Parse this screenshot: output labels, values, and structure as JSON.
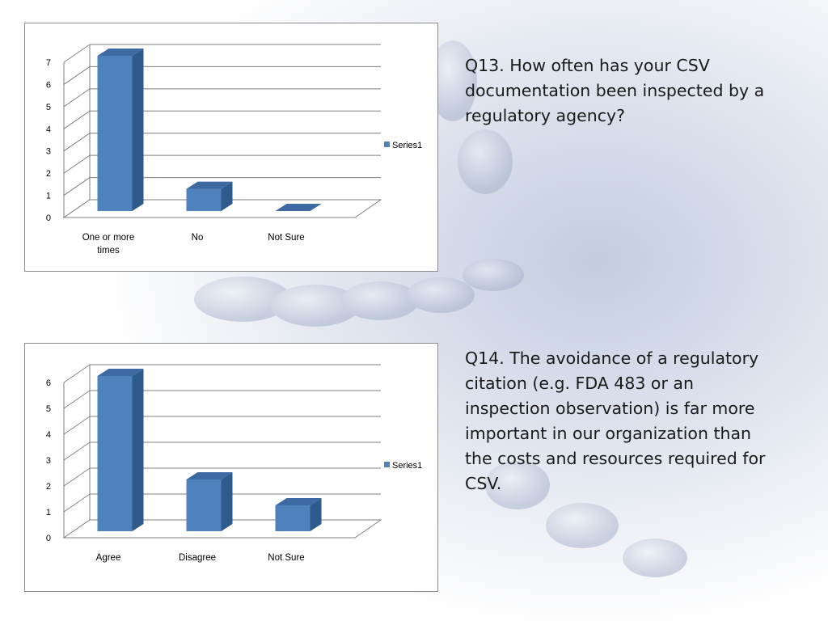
{
  "slide": {
    "q13_text": "Q13. How often has your CSV documentation been inspected by a regulatory agency?",
    "q14_text": "Q14. The avoidance of a regulatory citation (e.g. FDA 483 or an inspection observation) is far more important in our organization than the costs and resources required for CSV."
  },
  "colors": {
    "bar_front": "#4f81bd",
    "bar_side": "#2f5a8c",
    "bar_top": "#3d6aa3",
    "grid": "#7f7f7f",
    "background_tint": "#cfd6e6"
  },
  "chart_data": [
    {
      "type": "bar",
      "style": "3d-column",
      "categories": [
        "One or more times",
        "No",
        "Not Sure"
      ],
      "category_lines": [
        [
          "One or more",
          "times"
        ],
        [
          "No"
        ],
        [
          "Not Sure"
        ]
      ],
      "series": [
        {
          "name": "Series1",
          "values": [
            7,
            1,
            0
          ]
        }
      ],
      "yticks": [
        "0",
        "1",
        "2",
        "3",
        "4",
        "5",
        "6",
        "7"
      ],
      "ylim": [
        0,
        7
      ],
      "legend": "right",
      "grid": true
    },
    {
      "type": "bar",
      "style": "3d-column",
      "categories": [
        "Agree",
        "Disagree",
        "Not Sure"
      ],
      "category_lines": [
        [
          "Agree"
        ],
        [
          "Disagree"
        ],
        [
          "Not Sure"
        ]
      ],
      "series": [
        {
          "name": "Series1",
          "values": [
            6,
            2,
            1
          ]
        }
      ],
      "yticks": [
        "0",
        "1",
        "2",
        "3",
        "4",
        "5",
        "6"
      ],
      "ylim": [
        0,
        6
      ],
      "legend": "right",
      "grid": true
    }
  ]
}
